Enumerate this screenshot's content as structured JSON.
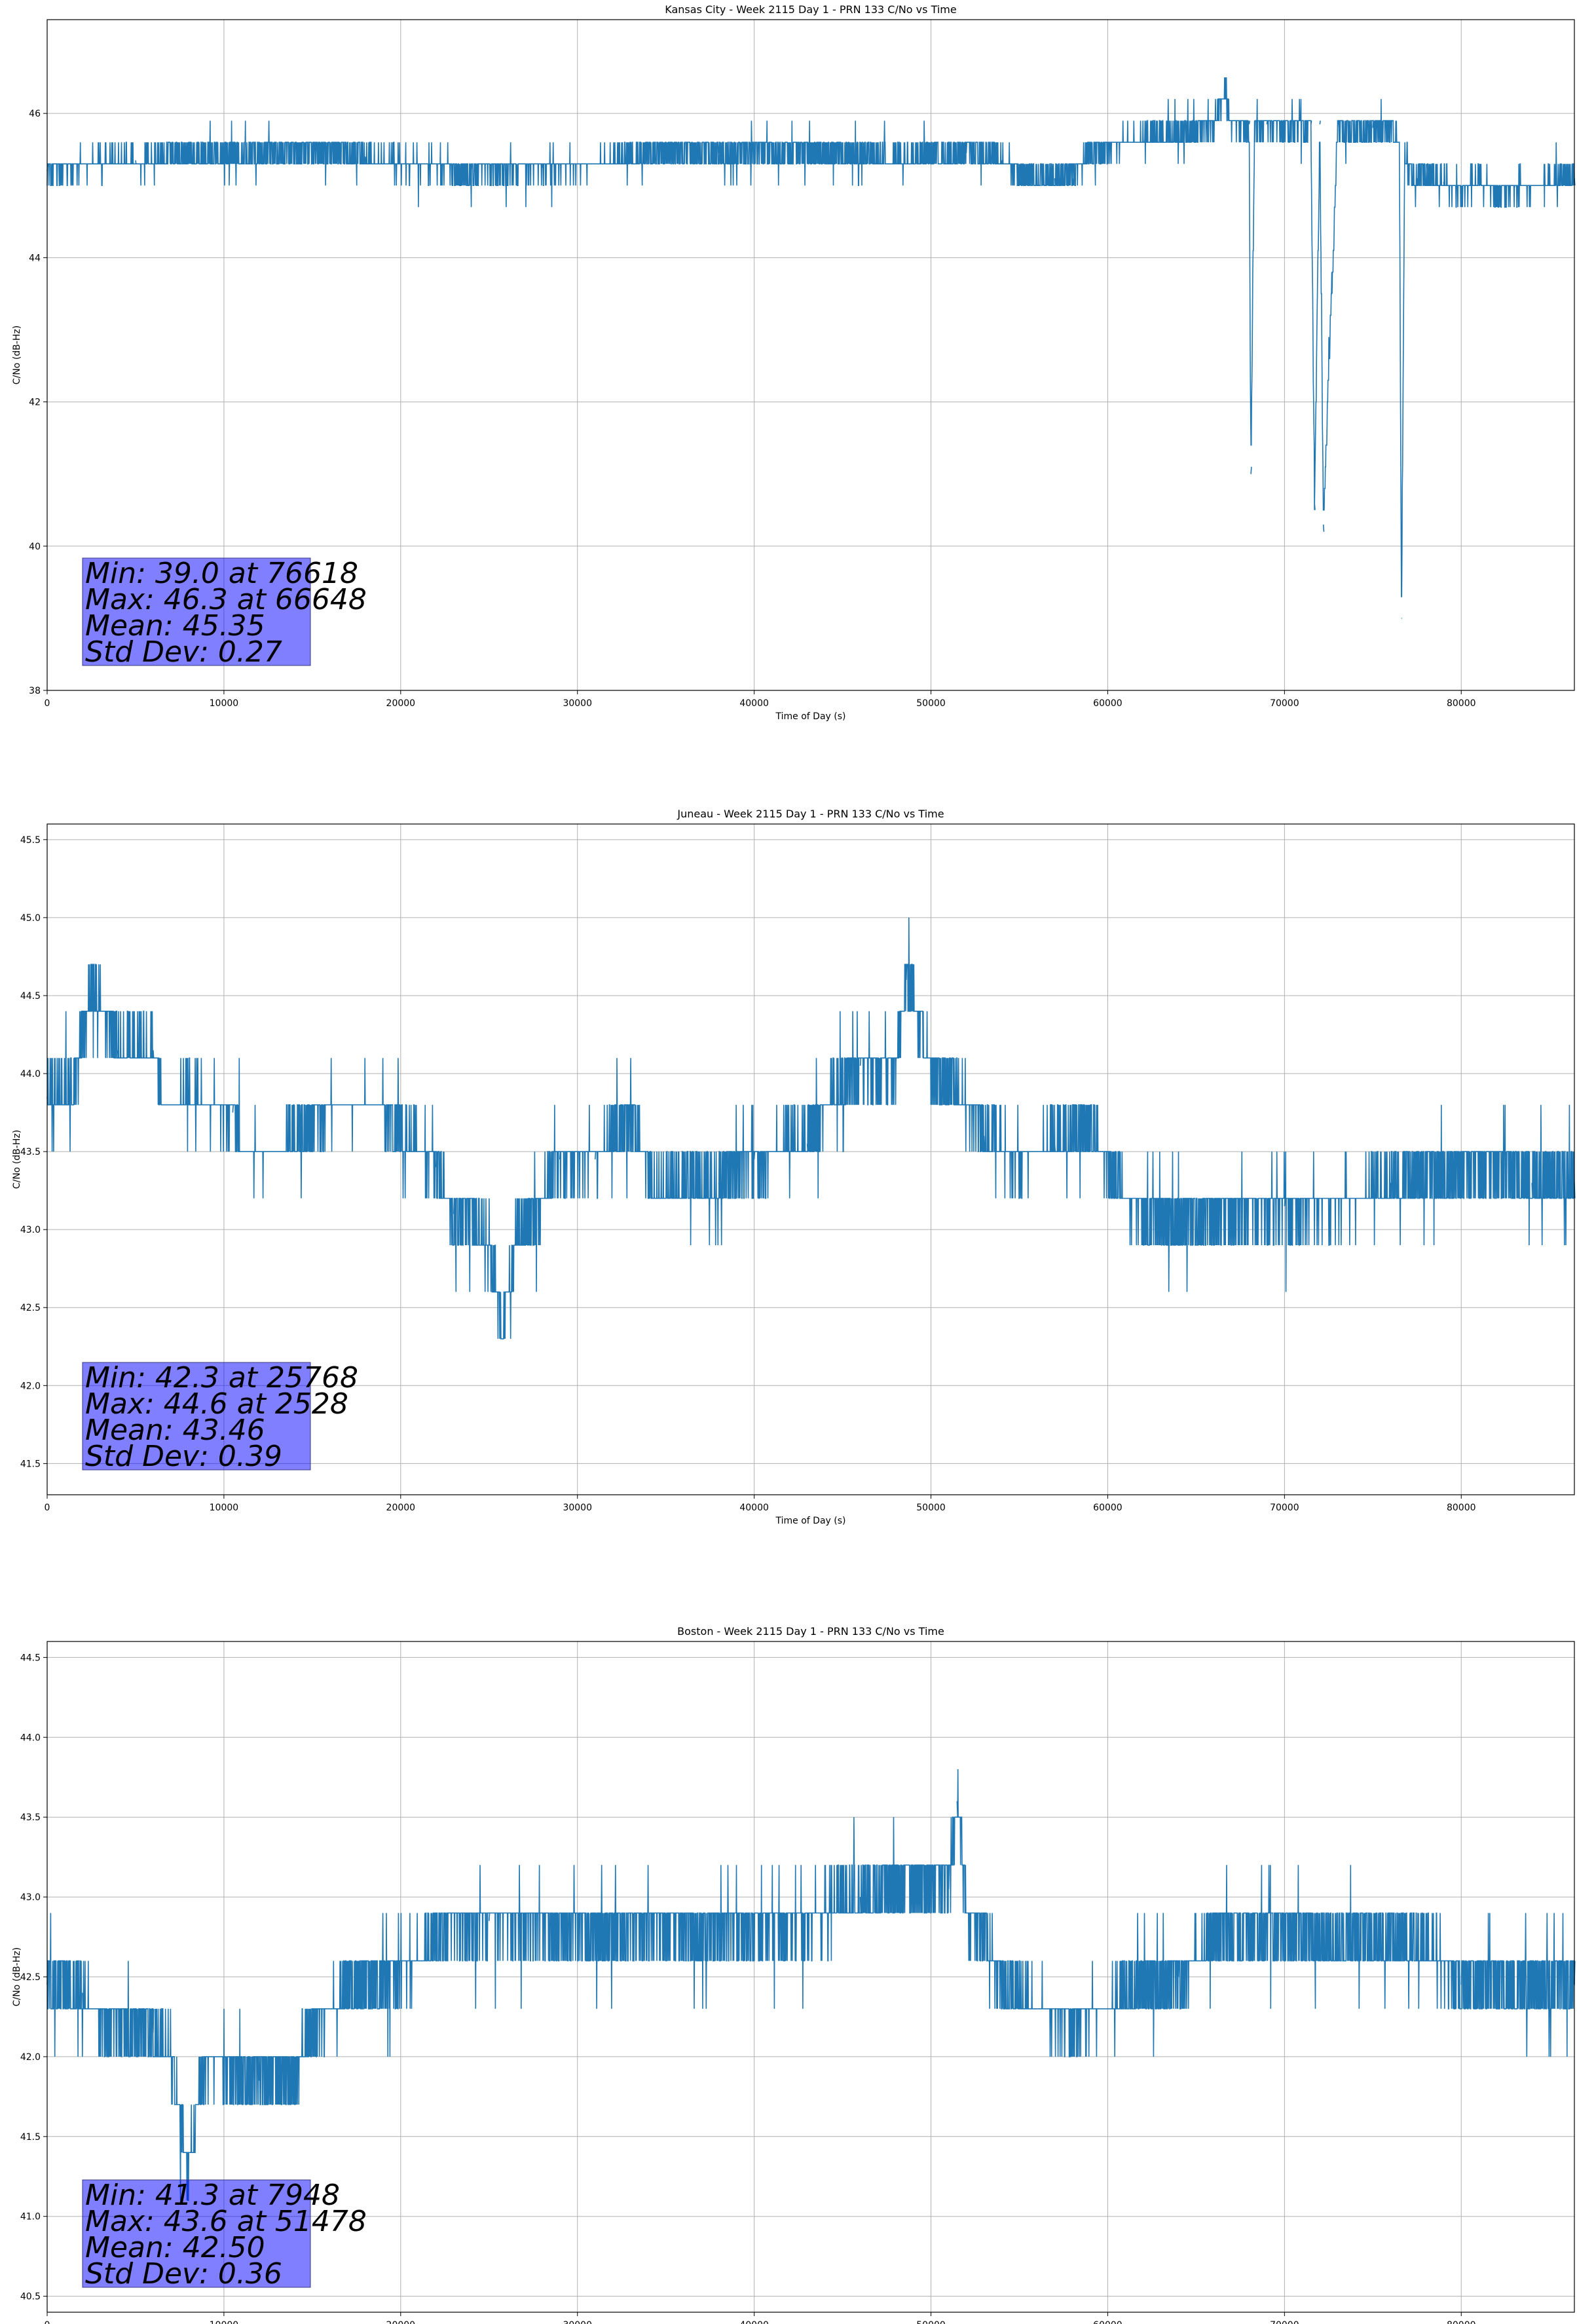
{
  "chart_data": [
    {
      "type": "line",
      "title": "Kansas City - Week 2115 Day 1 - PRN 133 C/No vs Time",
      "xlabel": "Time of Day (s)",
      "ylabel": "C/No (dB-Hz)",
      "xlim": [
        0,
        86400
      ],
      "ylim": [
        38,
        47.3
      ],
      "xticks": [
        0,
        10000,
        20000,
        30000,
        40000,
        50000,
        60000,
        70000,
        80000
      ],
      "yticks": [
        38,
        40,
        42,
        44,
        46
      ],
      "grid": true,
      "line_color": "#1f77b4",
      "stats_lines": [
        "Min: 39.0 at 76618",
        "Max: 46.3 at 66648",
        "Mean: 45.35",
        "Std Dev: 0.27"
      ],
      "series": [
        {
          "x": [
            0,
            2000,
            5000,
            8000,
            12000,
            15000,
            18000,
            20000,
            24000,
            28000,
            31000,
            34000,
            38000,
            42000,
            44000,
            46000,
            48000,
            50000,
            52000,
            54000,
            55500,
            57000,
            58000,
            59000,
            60000,
            61000,
            62000,
            64000,
            65000,
            66000,
            66648,
            67000,
            68000,
            68100,
            68300,
            69000,
            70000,
            71500,
            71700,
            72000,
            72200,
            73000,
            75000,
            76000,
            76500,
            76618,
            76800,
            77500,
            78000,
            79000,
            80000,
            81000,
            82000,
            83000,
            84000,
            85000,
            86400
          ],
          "y": [
            45.2,
            45.3,
            45.35,
            45.4,
            45.45,
            45.45,
            45.4,
            45.3,
            45.2,
            45.25,
            45.3,
            45.45,
            45.45,
            45.45,
            45.45,
            45.4,
            45.35,
            45.4,
            45.45,
            45.35,
            45.1,
            45.1,
            45.1,
            45.5,
            45.55,
            45.6,
            45.65,
            45.7,
            45.8,
            45.85,
            46.3,
            45.85,
            45.85,
            41.0,
            45.8,
            45.85,
            45.8,
            45.85,
            40.6,
            45.85,
            40.3,
            45.8,
            45.8,
            45.8,
            45.6,
            39.0,
            45.4,
            45.1,
            45.15,
            45.05,
            44.95,
            45.1,
            44.9,
            44.95,
            45.0,
            45.05,
            45.1
          ]
        }
      ]
    },
    {
      "type": "line",
      "title": "Juneau - Week 2115 Day 1 - PRN 133 C/No vs Time",
      "xlabel": "Time of Day (s)",
      "ylabel": "C/No (dB-Hz)",
      "xlim": [
        0,
        86400
      ],
      "ylim": [
        41.3,
        45.6
      ],
      "xticks": [
        0,
        10000,
        20000,
        30000,
        40000,
        50000,
        60000,
        70000,
        80000
      ],
      "yticks": [
        41.5,
        42.0,
        42.5,
        43.0,
        43.5,
        44.0,
        44.5,
        45.0,
        45.5
      ],
      "grid": true,
      "line_color": "#1f77b4",
      "stats_lines": [
        "Min: 42.3 at 25768",
        "Max: 44.6 at 2528",
        "Mean: 43.46",
        "Std Dev: 0.39"
      ],
      "series": [
        {
          "x": [
            0,
            1500,
            2528,
            4000,
            6000,
            6500,
            8000,
            10500,
            11000,
            13000,
            16000,
            19000,
            20000,
            22000,
            23000,
            25000,
            25768,
            26500,
            27500,
            29000,
            31000,
            33000,
            34500,
            36000,
            38000,
            40000,
            43000,
            44000,
            46000,
            48000,
            48600,
            50000,
            52000,
            53000,
            55000,
            57000,
            59000,
            61000,
            62000,
            64000,
            66000,
            70000,
            74000,
            76000,
            78000,
            80000,
            82000,
            84000,
            86400
          ],
          "y": [
            43.85,
            43.9,
            44.6,
            44.15,
            44.15,
            43.8,
            43.85,
            43.75,
            43.5,
            43.5,
            43.8,
            43.8,
            43.6,
            43.4,
            43.1,
            42.95,
            42.3,
            42.95,
            43.05,
            43.45,
            43.45,
            43.75,
            43.2,
            43.3,
            43.3,
            43.45,
            43.55,
            43.8,
            44.05,
            44.05,
            44.6,
            44.05,
            43.8,
            43.6,
            43.45,
            43.55,
            43.65,
            43.2,
            43.1,
            43.05,
            43.1,
            43.15,
            43.2,
            43.3,
            43.35,
            43.4,
            43.4,
            43.3,
            43.3
          ]
        }
      ]
    },
    {
      "type": "line",
      "title": "Boston - Week 2115 Day 1 - PRN 133 C/No vs Time",
      "xlabel": "Time of Day (s)",
      "ylabel": "C/No (dB-Hz)",
      "xlim": [
        0,
        86400
      ],
      "ylim": [
        40.4,
        44.6
      ],
      "xticks": [
        0,
        10000,
        20000,
        30000,
        40000,
        50000,
        60000,
        70000,
        80000
      ],
      "yticks": [
        40.5,
        41.0,
        41.5,
        42.0,
        42.5,
        43.0,
        43.5,
        44.0,
        44.5
      ],
      "grid": true,
      "line_color": "#1f77b4",
      "stats_lines": [
        "Min: 41.3 at 7948",
        "Max: 43.6 at 51478",
        "Mean: 42.50",
        "Std Dev: 0.36"
      ],
      "series": [
        {
          "x": [
            0,
            2000,
            3000,
            6000,
            7000,
            7948,
            9000,
            12000,
            14000,
            15000,
            17000,
            19000,
            21000,
            22000,
            25000,
            30000,
            35000,
            40000,
            43000,
            46000,
            49000,
            51000,
            51478,
            52000,
            53000,
            54000,
            56000,
            58000,
            60000,
            62000,
            64000,
            66000,
            70000,
            74000,
            78000,
            80000,
            84000,
            86400
          ],
          "y": [
            42.45,
            42.4,
            42.2,
            42.15,
            42.0,
            41.3,
            42.0,
            41.85,
            41.9,
            42.2,
            42.4,
            42.5,
            42.6,
            42.8,
            42.85,
            42.8,
            42.8,
            42.8,
            42.85,
            43.0,
            43.1,
            43.05,
            43.6,
            42.9,
            42.8,
            42.45,
            42.3,
            42.25,
            42.3,
            42.45,
            42.5,
            42.75,
            42.8,
            42.75,
            42.7,
            42.45,
            42.45,
            42.45
          ]
        }
      ]
    }
  ]
}
